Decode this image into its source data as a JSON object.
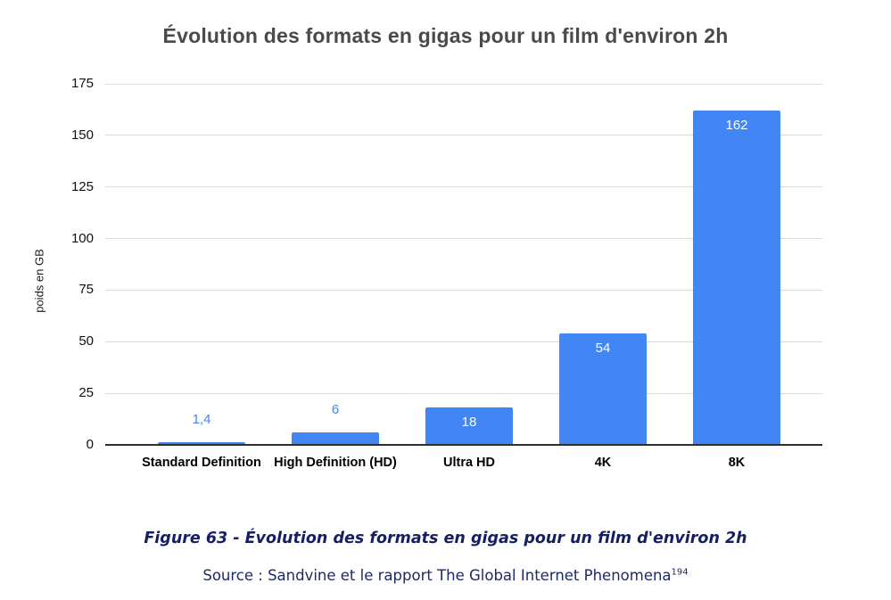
{
  "chart": {
    "title": "Évolution des formats en gigas pour un film d'environ 2h",
    "ylabel": "poids en GB"
  },
  "chart_data": {
    "type": "bar",
    "title": "Évolution des formats en gigas pour un film d'environ 2h",
    "xlabel": "",
    "ylabel": "poids en GB",
    "categories": [
      "Standard Definition",
      "High Definition (HD)",
      "Ultra HD",
      "4K",
      "8K"
    ],
    "values": [
      1.4,
      6,
      18,
      54,
      162
    ],
    "value_labels": [
      "1,4",
      "6",
      "18",
      "54",
      "162"
    ],
    "yticks": [
      0,
      25,
      50,
      75,
      100,
      125,
      150,
      175
    ],
    "ylim": [
      0,
      175
    ],
    "grid": true,
    "legend_position": "none",
    "colors": {
      "bar": "#4285F4",
      "value_label_outside": "#4285F4",
      "value_label_inside": "#ffffff",
      "gridline": "#dadada",
      "axis_line": "#2e2e2e",
      "caption": "#151f63"
    }
  },
  "caption": {
    "text": "Figure 63 - Évolution des formats en gigas pour un film d'environ 2h"
  },
  "source": {
    "text": "Source : Sandvine et le rapport The Global Internet Phenomena",
    "superscript": "194"
  }
}
